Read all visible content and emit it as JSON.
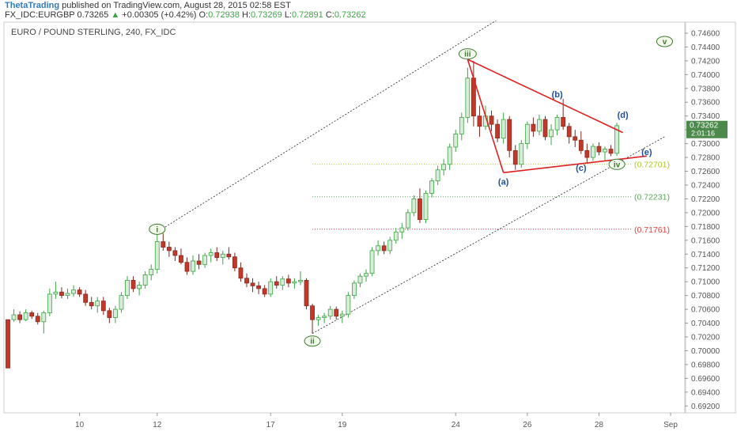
{
  "header": {
    "author": "ThetaTrading",
    "published_text": "published on TradingView.com, August 28, 2015 02:58 EST",
    "symbol": "FX_IDC:EURGBP",
    "last": "0.73265",
    "up_arrow": "▲",
    "change": "+0.00305 (+0.42%)",
    "o_label": "O:",
    "o_value": "0.72938",
    "h_label": "H:",
    "h_value": "0.73269",
    "l_label": "L:",
    "l_value": "0.72891",
    "c_label": "C:",
    "c_value": "0.73262"
  },
  "colors": {
    "up_candle": "#d9ecd9",
    "up_border": "#3aa542",
    "down_candle": "#c0392b",
    "triangle": "#e02020",
    "wave_label_green": "#3b7a2a",
    "wave_label_blue": "#1f4fa0",
    "level_yellow": "#a8c52a",
    "level_green": "#5aa65a",
    "level_red": "#e04040",
    "price_badge": "#4b8a4b"
  },
  "chart_data": {
    "type": "candlestick",
    "title": "EURO / POUND STERLING, 240, FX_IDC",
    "interval": "240",
    "ylim": [
      0.691,
      0.7476
    ],
    "y_ticks": [
      "0.74600",
      "0.74400",
      "0.74200",
      "0.74000",
      "0.73800",
      "0.73600",
      "0.73400",
      "0.73200",
      "0.73000",
      "0.72800",
      "0.72600",
      "0.72400",
      "0.72200",
      "0.72000",
      "0.71800",
      "0.71600",
      "0.71400",
      "0.71200",
      "0.71000",
      "0.70800",
      "0.70600",
      "0.70400",
      "0.70200",
      "0.70000",
      "0.69800",
      "0.69600",
      "0.69400",
      "0.69200"
    ],
    "x_ticks": [
      "10",
      "12",
      "17",
      "19",
      "24",
      "26",
      "28",
      "Sep"
    ],
    "last_price_label": "0.73262",
    "countdown_label": "2:01:16",
    "candles": [
      [
        0.7045,
        0.7045,
        0.6975,
        0.6975
      ],
      [
        0.7045,
        0.706,
        0.7042,
        0.7052
      ],
      [
        0.7052,
        0.7057,
        0.704,
        0.7045
      ],
      [
        0.7045,
        0.706,
        0.7043,
        0.7055
      ],
      [
        0.7055,
        0.7058,
        0.7046,
        0.705
      ],
      [
        0.705,
        0.7055,
        0.7038,
        0.7042
      ],
      [
        0.7042,
        0.7058,
        0.7025,
        0.7055
      ],
      [
        0.7055,
        0.709,
        0.705,
        0.7082
      ],
      [
        0.7082,
        0.71,
        0.7075,
        0.7085
      ],
      [
        0.7085,
        0.7092,
        0.7076,
        0.708
      ],
      [
        0.708,
        0.709,
        0.7075,
        0.7083
      ],
      [
        0.7083,
        0.7095,
        0.7078,
        0.7088
      ],
      [
        0.7088,
        0.7092,
        0.7078,
        0.7082
      ],
      [
        0.7082,
        0.7088,
        0.7065,
        0.707
      ],
      [
        0.707,
        0.7078,
        0.706,
        0.7065
      ],
      [
        0.7065,
        0.7078,
        0.7055,
        0.7072
      ],
      [
        0.7072,
        0.7078,
        0.7052,
        0.7058
      ],
      [
        0.7058,
        0.7062,
        0.704,
        0.7048
      ],
      [
        0.7048,
        0.7065,
        0.704,
        0.706
      ],
      [
        0.706,
        0.7085,
        0.7055,
        0.708
      ],
      [
        0.708,
        0.7108,
        0.7075,
        0.7102
      ],
      [
        0.7102,
        0.7108,
        0.7085,
        0.709
      ],
      [
        0.709,
        0.71,
        0.708,
        0.7095
      ],
      [
        0.7095,
        0.7115,
        0.709,
        0.711
      ],
      [
        0.711,
        0.7125,
        0.7102,
        0.7118
      ],
      [
        0.7118,
        0.7172,
        0.7112,
        0.7158
      ],
      [
        0.7158,
        0.717,
        0.7145,
        0.715
      ],
      [
        0.715,
        0.7158,
        0.7136,
        0.7145
      ],
      [
        0.7145,
        0.715,
        0.713,
        0.7138
      ],
      [
        0.7138,
        0.7148,
        0.7125,
        0.7128
      ],
      [
        0.7128,
        0.7135,
        0.711,
        0.7115
      ],
      [
        0.7115,
        0.7138,
        0.711,
        0.713
      ],
      [
        0.713,
        0.714,
        0.7118,
        0.7125
      ],
      [
        0.7125,
        0.7142,
        0.712,
        0.7138
      ],
      [
        0.7138,
        0.7148,
        0.7128,
        0.7142
      ],
      [
        0.7142,
        0.715,
        0.713,
        0.7135
      ],
      [
        0.7135,
        0.7145,
        0.7125,
        0.714
      ],
      [
        0.714,
        0.715,
        0.7132,
        0.7136
      ],
      [
        0.7136,
        0.7142,
        0.7115,
        0.712
      ],
      [
        0.712,
        0.7128,
        0.71,
        0.7105
      ],
      [
        0.7105,
        0.7112,
        0.7092,
        0.7098
      ],
      [
        0.7098,
        0.7105,
        0.7085,
        0.7094
      ],
      [
        0.7094,
        0.71,
        0.7082,
        0.709
      ],
      [
        0.709,
        0.7095,
        0.7078,
        0.7082
      ],
      [
        0.7082,
        0.7105,
        0.7078,
        0.71
      ],
      [
        0.71,
        0.7108,
        0.709,
        0.7095
      ],
      [
        0.7095,
        0.7108,
        0.7088,
        0.7104
      ],
      [
        0.7104,
        0.711,
        0.7092,
        0.7098
      ],
      [
        0.7098,
        0.7105,
        0.709,
        0.71
      ],
      [
        0.71,
        0.7115,
        0.7095,
        0.7102
      ],
      [
        0.7102,
        0.7105,
        0.706,
        0.7065
      ],
      [
        0.7065,
        0.7068,
        0.7025,
        0.7045
      ],
      [
        0.7045,
        0.7052,
        0.7036,
        0.7048
      ],
      [
        0.7048,
        0.7055,
        0.704,
        0.705
      ],
      [
        0.705,
        0.7065,
        0.7045,
        0.706
      ],
      [
        0.706,
        0.7064,
        0.7045,
        0.705
      ],
      [
        0.705,
        0.7058,
        0.704,
        0.7053
      ],
      [
        0.7053,
        0.7085,
        0.7048,
        0.708
      ],
      [
        0.708,
        0.7102,
        0.7075,
        0.7098
      ],
      [
        0.7098,
        0.7112,
        0.7092,
        0.7108
      ],
      [
        0.7108,
        0.7118,
        0.71,
        0.7112
      ],
      [
        0.7112,
        0.715,
        0.7108,
        0.7145
      ],
      [
        0.7145,
        0.716,
        0.7138,
        0.7152
      ],
      [
        0.7152,
        0.7158,
        0.714,
        0.7145
      ],
      [
        0.7145,
        0.7165,
        0.714,
        0.716
      ],
      [
        0.716,
        0.7178,
        0.7155,
        0.7172
      ],
      [
        0.7172,
        0.7185,
        0.7162,
        0.7178
      ],
      [
        0.7178,
        0.7205,
        0.7174,
        0.72
      ],
      [
        0.72,
        0.7225,
        0.7195,
        0.722
      ],
      [
        0.722,
        0.7235,
        0.7185,
        0.719
      ],
      [
        0.719,
        0.7232,
        0.7185,
        0.7228
      ],
      [
        0.7228,
        0.725,
        0.7222,
        0.7246
      ],
      [
        0.7246,
        0.7268,
        0.724,
        0.7262
      ],
      [
        0.7262,
        0.7278,
        0.7254,
        0.727
      ],
      [
        0.727,
        0.73,
        0.7262,
        0.7295
      ],
      [
        0.7295,
        0.732,
        0.7288,
        0.7314
      ],
      [
        0.7314,
        0.7345,
        0.7305,
        0.7338
      ],
      [
        0.7338,
        0.741,
        0.733,
        0.7395
      ],
      [
        0.7395,
        0.742,
        0.7325,
        0.734
      ],
      [
        0.734,
        0.7355,
        0.731,
        0.7325
      ],
      [
        0.7325,
        0.7355,
        0.732,
        0.734
      ],
      [
        0.734,
        0.7348,
        0.7318,
        0.7328
      ],
      [
        0.7328,
        0.7335,
        0.7302,
        0.7308
      ],
      [
        0.7308,
        0.7345,
        0.73,
        0.7335
      ],
      [
        0.7335,
        0.734,
        0.728,
        0.729
      ],
      [
        0.729,
        0.7298,
        0.7262,
        0.727
      ],
      [
        0.727,
        0.7305,
        0.7265,
        0.73
      ],
      [
        0.73,
        0.7332,
        0.7292,
        0.7328
      ],
      [
        0.7328,
        0.7338,
        0.731,
        0.7318
      ],
      [
        0.7318,
        0.7342,
        0.7312,
        0.7335
      ],
      [
        0.7335,
        0.734,
        0.7305,
        0.731
      ],
      [
        0.731,
        0.7328,
        0.7298,
        0.732
      ],
      [
        0.732,
        0.7342,
        0.7312,
        0.7338
      ],
      [
        0.7338,
        0.7365,
        0.732,
        0.7325
      ],
      [
        0.7325,
        0.733,
        0.73,
        0.731
      ],
      [
        0.731,
        0.732,
        0.7295,
        0.7305
      ],
      [
        0.7305,
        0.7318,
        0.7285,
        0.729
      ],
      [
        0.729,
        0.73,
        0.7272,
        0.728
      ],
      [
        0.728,
        0.73,
        0.7275,
        0.7296
      ],
      [
        0.7296,
        0.7302,
        0.7283,
        0.7288
      ],
      [
        0.7288,
        0.7296,
        0.7275,
        0.7292
      ],
      [
        0.7292,
        0.7298,
        0.7282,
        0.7286
      ],
      [
        0.7286,
        0.733,
        0.7282,
        0.7326
      ]
    ],
    "levels": [
      {
        "label": "(0.72701)",
        "value": 0.72701,
        "color_key": "level_yellow"
      },
      {
        "label": "(0.72231)",
        "value": 0.72231,
        "color_key": "level_green"
      },
      {
        "label": "(0.71761)",
        "value": 0.71761,
        "color_key": "level_red"
      }
    ],
    "wave_labels": [
      {
        "text": "i",
        "circled": true,
        "color_key": "wave_label_green",
        "index": 25,
        "price": 0.7176
      },
      {
        "text": "ii",
        "circled": true,
        "color_key": "wave_label_green",
        "index": 51,
        "price": 0.7014
      },
      {
        "text": "iii",
        "circled": true,
        "color_key": "wave_label_green",
        "index": 77,
        "price": 0.743
      },
      {
        "text": "iv",
        "circled": true,
        "color_key": "wave_label_green",
        "index": 102,
        "price": 0.727
      },
      {
        "text": "v",
        "circled": true,
        "color_key": "wave_label_green",
        "index": 110,
        "price": 0.7448
      },
      {
        "text": "(a)",
        "circled": false,
        "color_key": "wave_label_blue",
        "index": 83,
        "price": 0.7245
      },
      {
        "text": "(b)",
        "circled": false,
        "color_key": "wave_label_blue",
        "index": 92,
        "price": 0.7372
      },
      {
        "text": "(c)",
        "circled": false,
        "color_key": "wave_label_blue",
        "index": 96,
        "price": 0.7265
      },
      {
        "text": "(d)",
        "circled": false,
        "color_key": "wave_label_blue",
        "index": 103,
        "price": 0.7342
      },
      {
        "text": "(e)",
        "circled": false,
        "color_key": "wave_label_blue",
        "index": 107,
        "price": 0.7288
      }
    ],
    "channel_upper": [
      [
        25,
        0.7172
      ],
      [
        83,
        0.7485
      ]
    ],
    "channel_lower": [
      [
        51,
        0.7025
      ],
      [
        110,
        0.731
      ]
    ],
    "triangle_upper": [
      [
        77,
        0.7422
      ],
      [
        103,
        0.7316
      ]
    ],
    "triangle_lower": [
      [
        83,
        0.7258
      ],
      [
        107,
        0.7282
      ]
    ]
  }
}
